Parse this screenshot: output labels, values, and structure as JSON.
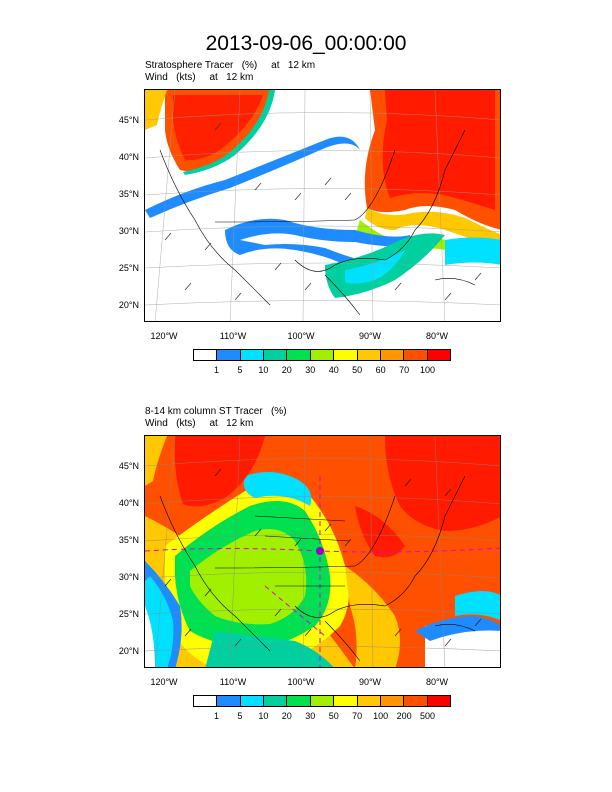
{
  "title": "2013-09-06_00:00:00",
  "panels": [
    {
      "line1": "Stratosphere Tracer   (%)     at   12 km",
      "line2": "Wind   (kts)     at   12 km",
      "lat_labels": [
        "45°N",
        "40°N",
        "35°N",
        "30°N",
        "25°N",
        "20°N"
      ],
      "lon_labels": [
        "120°W",
        "110°W",
        "100°W",
        "90°W",
        "80°W"
      ],
      "colorbar_labels": [
        "1",
        "5",
        "10",
        "20",
        "30",
        "40",
        "50",
        "60",
        "70",
        "100"
      ],
      "colorbar_colors": [
        "#ffffff",
        "#1e8cff",
        "#00e0ff",
        "#00d0a0",
        "#00e050",
        "#a0f000",
        "#ffff00",
        "#ffc800",
        "#ff9600",
        "#ff5000",
        "#ff0000"
      ]
    },
    {
      "line1": "8-14 km column ST Tracer   (%)",
      "line2": "Wind   (kts)     at   12 km",
      "lat_labels": [
        "45°N",
        "40°N",
        "35°N",
        "30°N",
        "25°N",
        "20°N"
      ],
      "lon_labels": [
        "120°W",
        "110°W",
        "100°W",
        "90°W",
        "80°W"
      ],
      "colorbar_labels": [
        "1",
        "5",
        "10",
        "20",
        "30",
        "50",
        "70",
        "100",
        "200",
        "500"
      ],
      "colorbar_colors": [
        "#ffffff",
        "#1e8cff",
        "#00e0ff",
        "#00d0a0",
        "#00e050",
        "#a0f000",
        "#ffff00",
        "#ffc800",
        "#ff9600",
        "#ff5000",
        "#ff0000"
      ]
    }
  ]
}
